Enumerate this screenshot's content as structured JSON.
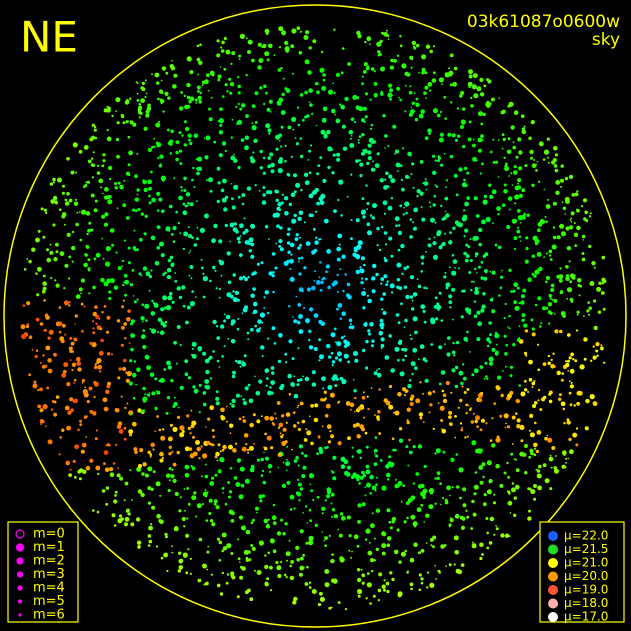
{
  "corner_label": "NE",
  "title": {
    "id": "03k61087o0600w",
    "subtitle": "sky"
  },
  "magnitude_legend": {
    "color": "#ff00ff",
    "entries": [
      "m=0",
      "m=1",
      "m=2",
      "m=3",
      "m=4",
      "m=5",
      "m=6"
    ]
  },
  "brightness_legend": {
    "entries": [
      {
        "label": "μ=22.0",
        "color": "#1e5cff"
      },
      {
        "label": "μ=21.5",
        "color": "#22dd22"
      },
      {
        "label": "μ=21.0",
        "color": "#ffff00"
      },
      {
        "label": "μ=20.0",
        "color": "#ff9900"
      },
      {
        "label": "μ=19.0",
        "color": "#ff5533"
      },
      {
        "label": "μ=18.0",
        "color": "#ffb0b0"
      },
      {
        "label": "μ=17.0",
        "color": "#ffffff"
      }
    ]
  }
}
